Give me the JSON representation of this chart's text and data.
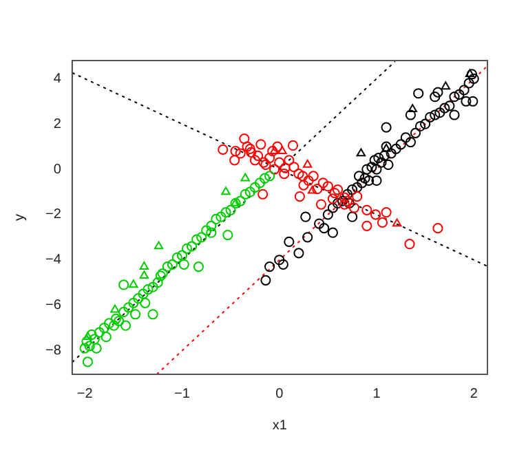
{
  "chart_data": {
    "type": "scatter",
    "xlabel": "x1",
    "ylabel": "y",
    "xlim": [
      -2.13,
      2.14
    ],
    "ylim": [
      -9.05,
      4.8
    ],
    "xticks": [
      -2,
      -1,
      0,
      1,
      2
    ],
    "yticks": [
      -8,
      -6,
      -4,
      -2,
      0,
      2,
      4
    ],
    "grid": false,
    "legend": false,
    "series": [
      {
        "marker": "circle",
        "color": "#00cd00",
        "x": [
          -2,
          -1.98,
          -1.95,
          -1.93,
          -1.9,
          -1.88,
          -1.85,
          -1.8,
          -1.78,
          -1.75,
          -1.7,
          -1.68,
          -1.65,
          -1.6,
          -1.58,
          -1.55,
          -1.5,
          -1.48,
          -1.45,
          -1.4,
          -1.38,
          -1.35,
          -1.3,
          -1.25,
          -1.22,
          -1.2,
          -1.15,
          -1.1,
          -1.05,
          -1.0,
          -0.98,
          -0.95,
          -0.9,
          -0.85,
          -0.8,
          -0.75,
          -0.7,
          -0.65,
          -0.6,
          -0.55,
          -0.5,
          -0.45,
          -0.4,
          -0.35,
          -0.3,
          -0.25,
          -0.2,
          -0.15,
          -0.1,
          -0.7,
          -1.97,
          -1.6,
          -1.3,
          -0.53,
          -0.83
        ],
        "values": [
          -7.9,
          -7.6,
          -7.8,
          -7.3,
          -7.5,
          -7.9,
          -7.2,
          -7.0,
          -7.4,
          -6.8,
          -6.9,
          -6.6,
          -6.7,
          -6.3,
          -6.9,
          -6.1,
          -5.9,
          -6.4,
          -5.7,
          -5.5,
          -5.9,
          -5.3,
          -5.2,
          -5.0,
          -4.7,
          -4.6,
          -4.3,
          -4.2,
          -3.9,
          -3.8,
          -4.2,
          -3.5,
          -3.4,
          -3.1,
          -3.0,
          -2.7,
          -2.5,
          -2.2,
          -2.1,
          -1.9,
          -1.8,
          -1.5,
          -1.4,
          -1.1,
          -1.0,
          -0.8,
          -0.6,
          -0.4,
          -0.3,
          -2.8,
          -8.5,
          -5.1,
          -6.4,
          -2.9,
          -4.3
        ]
      },
      {
        "marker": "triangle",
        "color": "#00cd00",
        "x": [
          -1.24,
          -1.39,
          -1.39,
          -1.5,
          -0.55,
          -0.35,
          -1.69,
          -1.97,
          -0.45
        ],
        "values": [
          -3.4,
          -4.3,
          -4.7,
          -5.1,
          -1.0,
          -0.4,
          -6.2,
          -7.4,
          -1.5
        ]
      },
      {
        "marker": "circle",
        "color": "#ff0000",
        "x": [
          -0.36,
          -0.58,
          -0.46,
          -0.45,
          -0.29,
          -0.19,
          -0.16,
          -0.22,
          -0.33,
          -0.07,
          0.14,
          -0.14,
          0.06,
          0.2,
          0.24,
          0.39,
          0.5,
          0.57,
          0.21,
          0.43,
          0.67,
          0.77,
          0.67,
          0.99,
          1.1,
          0.9,
          1.06,
          1.34,
          1.63,
          -0.1,
          0.0,
          -0.05,
          0.1,
          0.15,
          0.3,
          0.45,
          0.35,
          0.6,
          0.8,
          -0.25,
          -0.3,
          -0.4,
          0.05,
          -0.02,
          0.25,
          0.55,
          0.7,
          0.9,
          -0.17
        ],
        "values": [
          1.35,
          0.87,
          0.4,
          0.8,
          0.75,
          1.1,
          0.3,
          0.6,
          1.0,
          0.8,
          1.05,
          0.2,
          0.06,
          -0.2,
          -0.3,
          -0.87,
          -0.75,
          -1.05,
          -1.2,
          -1.55,
          -1.25,
          -1.7,
          -1.55,
          -2.0,
          -1.9,
          -2.5,
          -2.35,
          -3.3,
          -2.6,
          0.5,
          0.3,
          0.0,
          0.4,
          0.1,
          -0.5,
          -0.6,
          -0.3,
          -0.9,
          -1.2,
          0.4,
          0.9,
          0.7,
          -0.2,
          1.0,
          -0.7,
          -1.3,
          -1.4,
          -1.8,
          -1.1
        ]
      },
      {
        "marker": "triangle",
        "color": "#ff0000",
        "x": [
          0.03,
          -0.05,
          0.29,
          1.21,
          0.34
        ],
        "values": [
          0.8,
          0.8,
          0.2,
          -2.4,
          -0.95
        ]
      },
      {
        "marker": "circle",
        "color": "#000000",
        "x": [
          -0.14,
          -0.1,
          0.0,
          0.04,
          0.1,
          0.2,
          0.29,
          0.27,
          0.41,
          0.46,
          0.5,
          0.55,
          0.6,
          0.65,
          0.7,
          0.72,
          0.75,
          0.8,
          0.82,
          0.85,
          0.88,
          0.9,
          0.92,
          0.95,
          0.98,
          1.0,
          1.02,
          1.05,
          1.08,
          1.1,
          1.12,
          1.15,
          1.2,
          1.25,
          1.3,
          1.35,
          1.4,
          1.45,
          1.5,
          1.55,
          1.6,
          1.65,
          1.7,
          1.75,
          1.8,
          1.85,
          1.9,
          1.95,
          2.0,
          1.98,
          1.92,
          1.6,
          1.8,
          1.35,
          0.55,
          0.75,
          1.0,
          1.43,
          1.99,
          1.63,
          1.1
        ],
        "values": [
          -4.9,
          -4.3,
          -4.0,
          -4.2,
          -3.2,
          -3.7,
          -3.0,
          -2.1,
          -2.4,
          -2.6,
          -2.0,
          -1.7,
          -1.5,
          -1.4,
          -1.1,
          -1.5,
          -0.9,
          -0.8,
          -0.3,
          -0.6,
          -0.4,
          0.0,
          -0.5,
          0.1,
          0.4,
          0.0,
          0.5,
          0.3,
          0.6,
          1.0,
          0.2,
          0.7,
          0.9,
          1.1,
          1.4,
          1.2,
          1.6,
          1.9,
          2.0,
          2.3,
          2.4,
          2.5,
          2.7,
          2.8,
          3.2,
          3.3,
          3.5,
          3.8,
          4.0,
          4.2,
          3.0,
          3.2,
          2.4,
          2.4,
          -2.8,
          -2.1,
          -0.5,
          3.35,
          3.0,
          3.4,
          1.85
        ]
      },
      {
        "marker": "triangle",
        "color": "#000000",
        "x": [
          1.71,
          1.37,
          0.84,
          1.96,
          1.1
        ],
        "values": [
          3.65,
          2.65,
          0.7,
          4.2,
          0.9
        ]
      },
      {
        "type": "line",
        "marker": "none",
        "line_style": "dotted",
        "color": "#000000",
        "x": [
          -2.13,
          2.14
        ],
        "values": [
          4.26,
          -4.28
        ]
      },
      {
        "type": "line",
        "marker": "none",
        "line_style": "dotted",
        "color": "#000000",
        "x": [
          -2.13,
          1.19
        ],
        "values": [
          -8.52,
          4.76
        ]
      },
      {
        "type": "line",
        "marker": "none",
        "line_style": "dotted",
        "color": "#ff0000",
        "x": [
          -1.26,
          2.14
        ],
        "values": [
          -9.05,
          4.56
        ]
      }
    ]
  }
}
